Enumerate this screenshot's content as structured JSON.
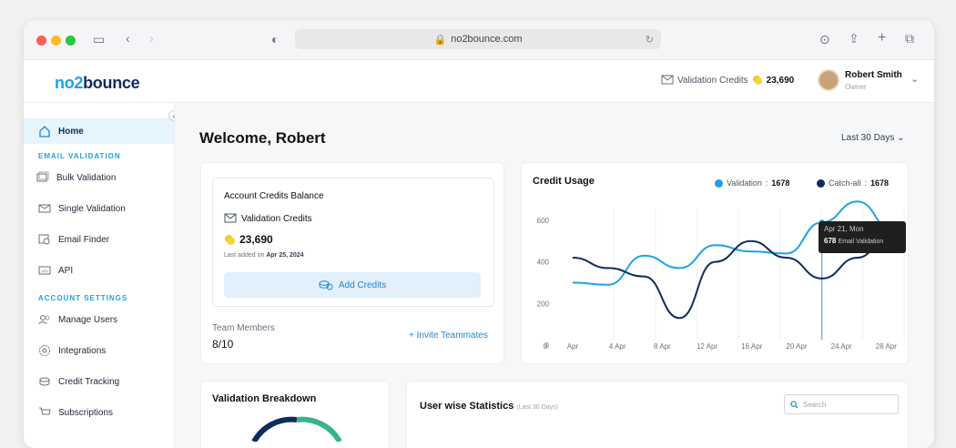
{
  "browser": {
    "url": "no2bounce.com"
  },
  "app": {
    "logo_prefix": "no2",
    "logo_suffix": "bounce",
    "header_credits_label": "Validation Credits",
    "header_credits_value": "23,690",
    "user_name": "Robert Smith",
    "user_role": "Owner"
  },
  "sidebar": {
    "home": "Home",
    "section_email": "EMAIL VALIDATION",
    "bulk": "Bulk Validation",
    "single": "Single Validation",
    "finder": "Email Finder",
    "api": "API",
    "section_account": "ACCOUNT SETTINGS",
    "users": "Manage Users",
    "integrations": "Integrations",
    "tracking": "Credit Tracking",
    "subscriptions": "Subscriptions"
  },
  "main": {
    "welcome": "Welcome, Robert",
    "range": "Last 30 Days",
    "balance_title": "Account Credits Balance",
    "balance_label": "Validation Credits",
    "balance_value": "23,690",
    "last_added": "Last added on",
    "last_added_date": "Apr 25, 2024",
    "add_credits": "Add Credits",
    "team_label": "Team Members",
    "team_value": "8/10",
    "invite": "+ Invite Teammates",
    "breakdown_title": "Validation Breakdown",
    "stats_title": "User wise Statistics",
    "stats_range": "(Last 30 Days)",
    "search_placeholder": "Search"
  },
  "chart_data": {
    "type": "line",
    "title": "Credit Usage",
    "x": [
      "0",
      "Apr",
      "4 Apr",
      "8 Apr",
      "12 Apr",
      "16 Apr",
      "20 Apr",
      "24 Apr",
      "28 Apr"
    ],
    "y_ticks": [
      "0",
      "200",
      "400",
      "600"
    ],
    "ylim": [
      0,
      700
    ],
    "legend_placement": "top-right",
    "series": [
      {
        "name": "Validation",
        "total": "1678",
        "color": "#1ea2e5",
        "points": [
          [
            0,
            300
          ],
          [
            1,
            290
          ],
          [
            2,
            430
          ],
          [
            3,
            370
          ],
          [
            4,
            480
          ],
          [
            5,
            450
          ],
          [
            6,
            440
          ],
          [
            7,
            590
          ],
          [
            8,
            690
          ],
          [
            9,
            550
          ]
        ]
      },
      {
        "name": "Catch-all",
        "total": "1678",
        "color": "#0f2d5c",
        "points": [
          [
            0,
            420
          ],
          [
            1,
            370
          ],
          [
            2,
            330
          ],
          [
            3,
            130
          ],
          [
            4,
            400
          ],
          [
            5,
            500
          ],
          [
            6,
            420
          ],
          [
            7,
            320
          ],
          [
            8,
            420
          ],
          [
            9,
            560
          ]
        ]
      }
    ],
    "tooltip": {
      "date": "Apr 21, Mon",
      "value": "678",
      "label": "Email Validation"
    }
  }
}
